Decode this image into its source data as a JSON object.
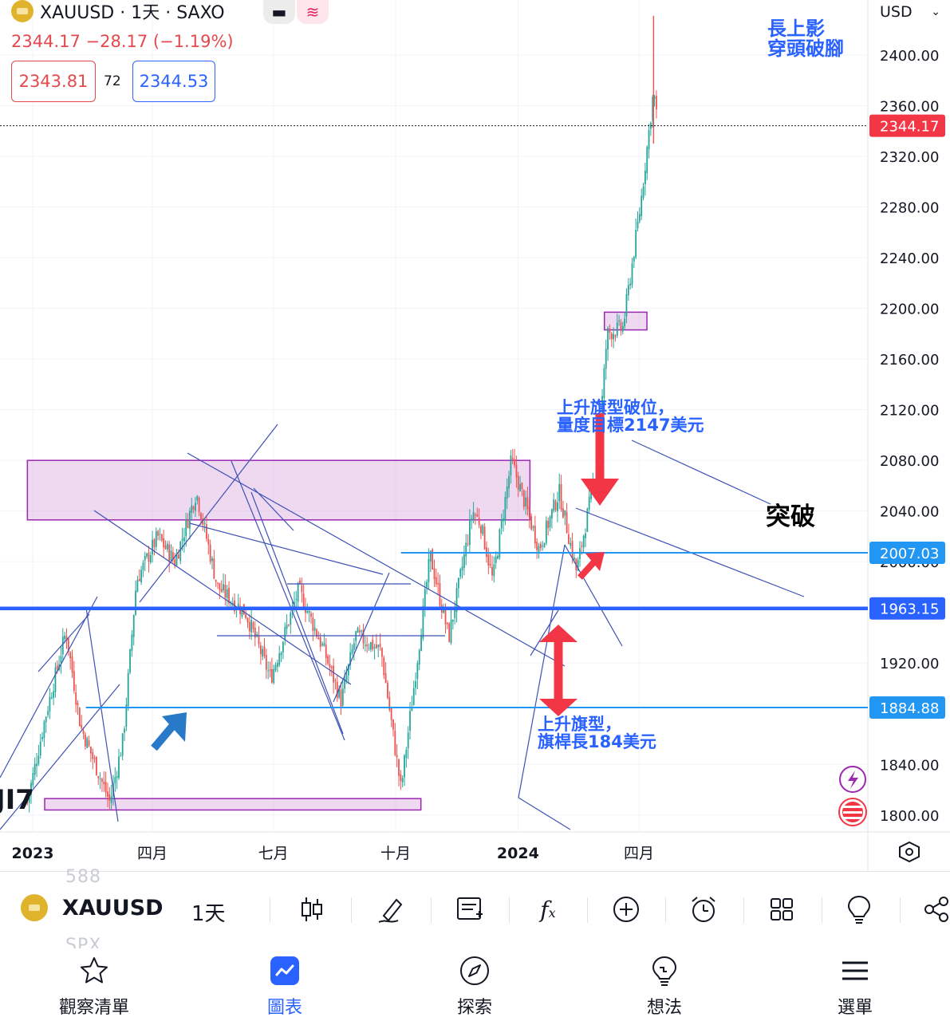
{
  "header": {
    "symbol_line": "XAUUSD · 1天 · SAXO",
    "price_change": "2344.17  −28.17 (−1.19%)",
    "bid": "2343.81",
    "spread": "72",
    "ask": "2344.53",
    "currency": "USD",
    "mini_btn_1": "▬",
    "mini_btn_2": "≋"
  },
  "chart_data": {
    "type": "candlestick",
    "symbol": "XAUUSD",
    "interval": "1天",
    "source": "SAXO",
    "y_axis_ticks": [
      "2400.00",
      "2360.00",
      "2320.00",
      "2280.00",
      "2240.00",
      "2200.00",
      "2160.00",
      "2120.00",
      "2080.00",
      "2040.00",
      "2000.00",
      "1920.00",
      "1840.00",
      "1800.00"
    ],
    "y_axis_values": [
      2400,
      2360,
      2320,
      2280,
      2240,
      2200,
      2160,
      2120,
      2080,
      2040,
      2000,
      1920,
      1840,
      1800
    ],
    "x_axis_ticks": [
      "2023",
      "四月",
      "七月",
      "十月",
      "2024",
      "四月"
    ],
    "x_axis_bold": [
      true,
      false,
      false,
      false,
      true,
      false
    ],
    "ylim": [
      1786,
      2434
    ],
    "approx_close_path": [
      {
        "date": "2022-12-28",
        "close": 1810
      },
      {
        "date": "2023-01-10",
        "close": 1875
      },
      {
        "date": "2023-01-26",
        "close": 1945
      },
      {
        "date": "2023-02-06",
        "close": 1870
      },
      {
        "date": "2023-02-28",
        "close": 1810
      },
      {
        "date": "2023-03-10",
        "close": 1860
      },
      {
        "date": "2023-03-20",
        "close": 1985
      },
      {
        "date": "2023-04-05",
        "close": 2020
      },
      {
        "date": "2023-04-18",
        "close": 2000
      },
      {
        "date": "2023-05-04",
        "close": 2055
      },
      {
        "date": "2023-05-20",
        "close": 1980
      },
      {
        "date": "2023-06-10",
        "close": 1960
      },
      {
        "date": "2023-06-29",
        "close": 1908
      },
      {
        "date": "2023-07-20",
        "close": 1978
      },
      {
        "date": "2023-08-08",
        "close": 1930
      },
      {
        "date": "2023-08-21",
        "close": 1890
      },
      {
        "date": "2023-09-01",
        "close": 1942
      },
      {
        "date": "2023-09-20",
        "close": 1930
      },
      {
        "date": "2023-10-05",
        "close": 1820
      },
      {
        "date": "2023-10-27",
        "close": 2005
      },
      {
        "date": "2023-11-10",
        "close": 1940
      },
      {
        "date": "2023-11-28",
        "close": 2040
      },
      {
        "date": "2023-12-04",
        "close": 2030
      },
      {
        "date": "2023-12-13",
        "close": 1985
      },
      {
        "date": "2023-12-27",
        "close": 2080
      },
      {
        "date": "2024-01-17",
        "close": 2010
      },
      {
        "date": "2024-02-01",
        "close": 2055
      },
      {
        "date": "2024-02-14",
        "close": 1992
      },
      {
        "date": "2024-03-01",
        "close": 2080
      },
      {
        "date": "2024-03-08",
        "close": 2180
      },
      {
        "date": "2024-03-20",
        "close": 2185
      },
      {
        "date": "2024-04-02",
        "close": 2280
      },
      {
        "date": "2024-04-12",
        "close": 2372
      },
      {
        "date": "2024-04-15",
        "close": 2344
      }
    ],
    "price_labels": [
      {
        "text": "2344.17",
        "value": 2344.17,
        "color": "#f23645"
      },
      {
        "text": "2007.03",
        "value": 2007.03,
        "color": "#2196f3"
      },
      {
        "text": "1963.15",
        "value": 1963.15,
        "color": "#2962ff"
      },
      {
        "text": "1884.88",
        "value": 1884.88,
        "color": "#2196f3"
      }
    ],
    "horizontal_levels": [
      {
        "value": 1963.15,
        "color": "#2962ff",
        "weight": "thick"
      },
      {
        "value": 2007.03,
        "color": "#2196f3",
        "weight": "thin",
        "from": "2023-10-05"
      },
      {
        "value": 1884.88,
        "color": "#2196f3",
        "weight": "thin",
        "from": "2023-02-10"
      }
    ],
    "zones": [
      {
        "from_price": 2033,
        "to_price": 2080,
        "from": "2022-12-28",
        "to": "2024-01-10",
        "color": "#ce93d8"
      },
      {
        "from_price": 1804,
        "to_price": 1813,
        "from": "2023-01-10",
        "to": "2023-10-20",
        "color": "#ce93d8"
      },
      {
        "from_price": 2183,
        "to_price": 2197,
        "from": "2024-03-06",
        "to": "2024-04-07",
        "color": "#ce93d8"
      }
    ],
    "annotations": [
      {
        "lines": [
          "長上影",
          "穿頭破腳"
        ],
        "color": "#2962ff"
      },
      {
        "lines": [
          "上升旗型破位，",
          "量度目標2147美元"
        ],
        "color": "#2962ff"
      },
      {
        "lines": [
          "突破"
        ],
        "color": "#000000"
      },
      {
        "lines": [
          "上升旗型，",
          "旗桿長184美元"
        ],
        "color": "#2962ff"
      }
    ],
    "corner_badge": "JI7",
    "colors": {
      "up": "#26a69a",
      "down": "#ef5350",
      "trendline": "#3f51b5",
      "arrow_red": "#f23645",
      "arrow_blue": "#2979c9"
    }
  },
  "toolbar": {
    "ghost_top": "588",
    "ghost_bottom": "SPX",
    "symbol": "XAUUSD",
    "interval": "1天",
    "icons": [
      "candles-icon",
      "draw-icon",
      "note-icon",
      "indicators-icon",
      "add-icon",
      "alert-icon",
      "layout-icon",
      "ideas-bulb-icon",
      "share-icon"
    ]
  },
  "nav": {
    "items": [
      {
        "label": "觀察清單",
        "icon": "star-icon"
      },
      {
        "label": "圖表",
        "icon": "chart-icon",
        "active": true
      },
      {
        "label": "探索",
        "icon": "compass-icon"
      },
      {
        "label": "想法",
        "icon": "ideas-icon"
      },
      {
        "label": "選單",
        "icon": "menu-icon"
      }
    ]
  }
}
